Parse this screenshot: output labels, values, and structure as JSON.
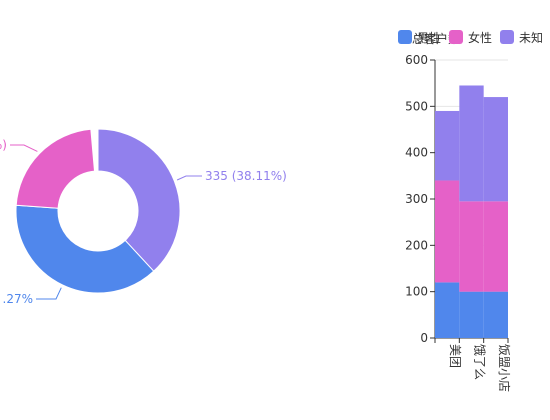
{
  "colors": {
    "male": "#5087EC",
    "female": "#E561C8",
    "unknown": "#9180ED"
  },
  "legend": {
    "male": "男性",
    "female": "女性",
    "unknown": "未知"
  },
  "chart_data": [
    {
      "type": "pie",
      "style": "donut",
      "slices": [
        {
          "key": "unknown",
          "value": 335,
          "percent": "38.11%",
          "label": "335 (38.11%)"
        },
        {
          "key": "male",
          "label": ".27%"
        },
        {
          "key": "female",
          "label": "%)"
        }
      ]
    },
    {
      "type": "bar",
      "stacked": true,
      "title": "总客户数",
      "categories": [
        "美团",
        "饿了么",
        "饭盟小店"
      ],
      "series": [
        {
          "key": "male",
          "name": "男性",
          "values": [
            120,
            100,
            100
          ]
        },
        {
          "key": "female",
          "name": "女性",
          "values": [
            220,
            195,
            195
          ]
        },
        {
          "key": "unknown",
          "name": "未知",
          "values": [
            150,
            250,
            225
          ]
        }
      ],
      "ylim": [
        0,
        600
      ],
      "yticks": [
        0,
        100,
        200,
        300,
        400,
        500,
        600
      ],
      "grid": true
    }
  ]
}
